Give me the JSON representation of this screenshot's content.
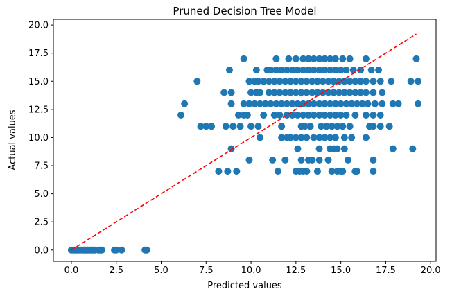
{
  "chart_data": {
    "type": "scatter",
    "title": "Pruned Decision Tree Model",
    "xlabel": "Predicted values",
    "ylabel": "Actual values",
    "xlim": [
      -1.0,
      20.3
    ],
    "ylim": [
      -1.0,
      20.5
    ],
    "xticks": [
      {
        "value": 0.0,
        "label": "0.0"
      },
      {
        "value": 2.5,
        "label": "2.5"
      },
      {
        "value": 5.0,
        "label": "5.0"
      },
      {
        "value": 7.5,
        "label": "7.5"
      },
      {
        "value": 10.0,
        "label": "10.0"
      },
      {
        "value": 12.5,
        "label": "12.5"
      },
      {
        "value": 15.0,
        "label": "15.0"
      },
      {
        "value": 17.5,
        "label": "17.5"
      },
      {
        "value": 20.0,
        "label": "20.0"
      }
    ],
    "yticks": [
      {
        "value": 0.0,
        "label": "0.0"
      },
      {
        "value": 2.5,
        "label": "2.5"
      },
      {
        "value": 5.0,
        "label": "5.0"
      },
      {
        "value": 7.5,
        "label": "7.5"
      },
      {
        "value": 10.0,
        "label": "10.0"
      },
      {
        "value": 12.5,
        "label": "12.5"
      },
      {
        "value": 15.0,
        "label": "15.0"
      },
      {
        "value": 17.5,
        "label": "17.5"
      },
      {
        "value": 20.0,
        "label": "20.0"
      }
    ],
    "grid": false,
    "marker_color": "#1f77b4",
    "reference_line": {
      "style": "dashed",
      "color": "#ff0000",
      "x": [
        0.0,
        19.2
      ],
      "y": [
        0.0,
        19.2
      ]
    },
    "points": [
      [
        0.0,
        0
      ],
      [
        0.1,
        0
      ],
      [
        0.2,
        0
      ],
      [
        0.3,
        0
      ],
      [
        0.4,
        0
      ],
      [
        0.5,
        0
      ],
      [
        0.6,
        0
      ],
      [
        0.7,
        0
      ],
      [
        0.8,
        0
      ],
      [
        0.9,
        0
      ],
      [
        1.0,
        0
      ],
      [
        1.1,
        0
      ],
      [
        1.2,
        0
      ],
      [
        1.3,
        0
      ],
      [
        1.5,
        0
      ],
      [
        1.6,
        0
      ],
      [
        1.7,
        0
      ],
      [
        2.4,
        0
      ],
      [
        2.5,
        0
      ],
      [
        2.8,
        0
      ],
      [
        4.1,
        0
      ],
      [
        4.2,
        0
      ],
      [
        8.2,
        7
      ],
      [
        8.7,
        7
      ],
      [
        9.2,
        7
      ],
      [
        11.5,
        7
      ],
      [
        12.5,
        7
      ],
      [
        12.7,
        7
      ],
      [
        12.9,
        7
      ],
      [
        13.1,
        7
      ],
      [
        13.7,
        7
      ],
      [
        14.5,
        7
      ],
      [
        14.8,
        7
      ],
      [
        15.0,
        7
      ],
      [
        15.1,
        7
      ],
      [
        15.8,
        7
      ],
      [
        15.9,
        7
      ],
      [
        16.8,
        7
      ],
      [
        9.9,
        8
      ],
      [
        11.2,
        8
      ],
      [
        11.9,
        8
      ],
      [
        12.8,
        8
      ],
      [
        13.2,
        8
      ],
      [
        13.4,
        8
      ],
      [
        13.8,
        8
      ],
      [
        14.3,
        8
      ],
      [
        15.4,
        8
      ],
      [
        16.8,
        8
      ],
      [
        8.9,
        9
      ],
      [
        12.6,
        9
      ],
      [
        13.8,
        9
      ],
      [
        14.4,
        9
      ],
      [
        14.6,
        9
      ],
      [
        14.8,
        9
      ],
      [
        15.2,
        9
      ],
      [
        17.9,
        9
      ],
      [
        19.0,
        9
      ],
      [
        10.5,
        10
      ],
      [
        11.7,
        10
      ],
      [
        12.0,
        10
      ],
      [
        12.2,
        10
      ],
      [
        12.5,
        10
      ],
      [
        12.8,
        10
      ],
      [
        13.1,
        10
      ],
      [
        13.5,
        10
      ],
      [
        13.8,
        10
      ],
      [
        14.1,
        10
      ],
      [
        14.4,
        10
      ],
      [
        14.7,
        10
      ],
      [
        15.2,
        10
      ],
      [
        15.6,
        10
      ],
      [
        16.4,
        10
      ],
      [
        7.2,
        11
      ],
      [
        7.5,
        11
      ],
      [
        7.8,
        11
      ],
      [
        8.6,
        11
      ],
      [
        9.0,
        11
      ],
      [
        9.4,
        11
      ],
      [
        10.0,
        11
      ],
      [
        10.4,
        11
      ],
      [
        11.7,
        11
      ],
      [
        12.8,
        11
      ],
      [
        13.0,
        11
      ],
      [
        13.3,
        11
      ],
      [
        13.9,
        11
      ],
      [
        14.2,
        11
      ],
      [
        14.5,
        11
      ],
      [
        14.8,
        11
      ],
      [
        15.1,
        11
      ],
      [
        15.5,
        11
      ],
      [
        16.6,
        11
      ],
      [
        16.8,
        11
      ],
      [
        17.2,
        11
      ],
      [
        17.7,
        11
      ],
      [
        6.1,
        12
      ],
      [
        9.3,
        12
      ],
      [
        9.6,
        12
      ],
      [
        9.8,
        12
      ],
      [
        10.7,
        12
      ],
      [
        11.3,
        12
      ],
      [
        11.6,
        12
      ],
      [
        12.0,
        12
      ],
      [
        12.3,
        12
      ],
      [
        12.6,
        12
      ],
      [
        12.9,
        12
      ],
      [
        13.2,
        12
      ],
      [
        13.5,
        12
      ],
      [
        13.8,
        12
      ],
      [
        14.1,
        12
      ],
      [
        14.4,
        12
      ],
      [
        14.7,
        12
      ],
      [
        15.0,
        12
      ],
      [
        15.3,
        12
      ],
      [
        15.8,
        12
      ],
      [
        16.4,
        12
      ],
      [
        16.8,
        12
      ],
      [
        17.2,
        12
      ],
      [
        6.3,
        13
      ],
      [
        8.9,
        13
      ],
      [
        9.6,
        13
      ],
      [
        9.9,
        13
      ],
      [
        10.2,
        13
      ],
      [
        10.5,
        13
      ],
      [
        10.8,
        13
      ],
      [
        11.1,
        13
      ],
      [
        11.4,
        13
      ],
      [
        11.7,
        13
      ],
      [
        12.0,
        13
      ],
      [
        12.3,
        13
      ],
      [
        12.6,
        13
      ],
      [
        12.9,
        13
      ],
      [
        13.2,
        13
      ],
      [
        13.5,
        13
      ],
      [
        13.8,
        13
      ],
      [
        14.1,
        13
      ],
      [
        14.4,
        13
      ],
      [
        14.7,
        13
      ],
      [
        15.0,
        13
      ],
      [
        15.3,
        13
      ],
      [
        15.6,
        13
      ],
      [
        15.9,
        13
      ],
      [
        16.2,
        13
      ],
      [
        16.5,
        13
      ],
      [
        16.9,
        13
      ],
      [
        17.3,
        13
      ],
      [
        17.9,
        13
      ],
      [
        18.2,
        13
      ],
      [
        19.3,
        13
      ],
      [
        8.5,
        14
      ],
      [
        8.9,
        14
      ],
      [
        10.0,
        14
      ],
      [
        10.3,
        14
      ],
      [
        10.5,
        14
      ],
      [
        11.0,
        14
      ],
      [
        11.3,
        14
      ],
      [
        11.6,
        14
      ],
      [
        11.9,
        14
      ],
      [
        12.2,
        14
      ],
      [
        12.5,
        14
      ],
      [
        12.8,
        14
      ],
      [
        13.1,
        14
      ],
      [
        13.4,
        14
      ],
      [
        13.7,
        14
      ],
      [
        14.0,
        14
      ],
      [
        14.3,
        14
      ],
      [
        14.6,
        14
      ],
      [
        14.9,
        14
      ],
      [
        15.2,
        14
      ],
      [
        15.5,
        14
      ],
      [
        15.8,
        14
      ],
      [
        16.1,
        14
      ],
      [
        16.4,
        14
      ],
      [
        16.8,
        14
      ],
      [
        17.3,
        14
      ],
      [
        7.0,
        15
      ],
      [
        9.9,
        15
      ],
      [
        10.2,
        15
      ],
      [
        10.4,
        15
      ],
      [
        10.7,
        15
      ],
      [
        11.0,
        15
      ],
      [
        11.3,
        15
      ],
      [
        11.6,
        15
      ],
      [
        11.9,
        15
      ],
      [
        12.2,
        15
      ],
      [
        12.5,
        15
      ],
      [
        12.8,
        15
      ],
      [
        13.1,
        15
      ],
      [
        13.4,
        15
      ],
      [
        13.7,
        15
      ],
      [
        14.0,
        15
      ],
      [
        14.3,
        15
      ],
      [
        14.6,
        15
      ],
      [
        14.9,
        15
      ],
      [
        15.2,
        15
      ],
      [
        15.5,
        15
      ],
      [
        15.8,
        15
      ],
      [
        16.1,
        15
      ],
      [
        16.4,
        15
      ],
      [
        16.8,
        15
      ],
      [
        17.2,
        15
      ],
      [
        17.8,
        15
      ],
      [
        18.9,
        15
      ],
      [
        19.3,
        15
      ],
      [
        8.8,
        16
      ],
      [
        10.3,
        16
      ],
      [
        10.9,
        16
      ],
      [
        11.1,
        16
      ],
      [
        11.4,
        16
      ],
      [
        11.7,
        16
      ],
      [
        12.0,
        16
      ],
      [
        12.3,
        16
      ],
      [
        12.6,
        16
      ],
      [
        12.9,
        16
      ],
      [
        13.2,
        16
      ],
      [
        13.5,
        16
      ],
      [
        13.8,
        16
      ],
      [
        14.1,
        16
      ],
      [
        14.4,
        16
      ],
      [
        14.7,
        16
      ],
      [
        15.0,
        16
      ],
      [
        15.3,
        16
      ],
      [
        15.7,
        16
      ],
      [
        16.1,
        16
      ],
      [
        16.7,
        16
      ],
      [
        17.1,
        16
      ],
      [
        9.6,
        17
      ],
      [
        11.4,
        17
      ],
      [
        12.1,
        17
      ],
      [
        12.5,
        17
      ],
      [
        12.9,
        17
      ],
      [
        13.2,
        17
      ],
      [
        13.5,
        17
      ],
      [
        13.8,
        17
      ],
      [
        14.1,
        17
      ],
      [
        14.4,
        17
      ],
      [
        14.7,
        17
      ],
      [
        15.1,
        17
      ],
      [
        15.5,
        17
      ],
      [
        16.4,
        17
      ],
      [
        19.2,
        17
      ]
    ]
  }
}
